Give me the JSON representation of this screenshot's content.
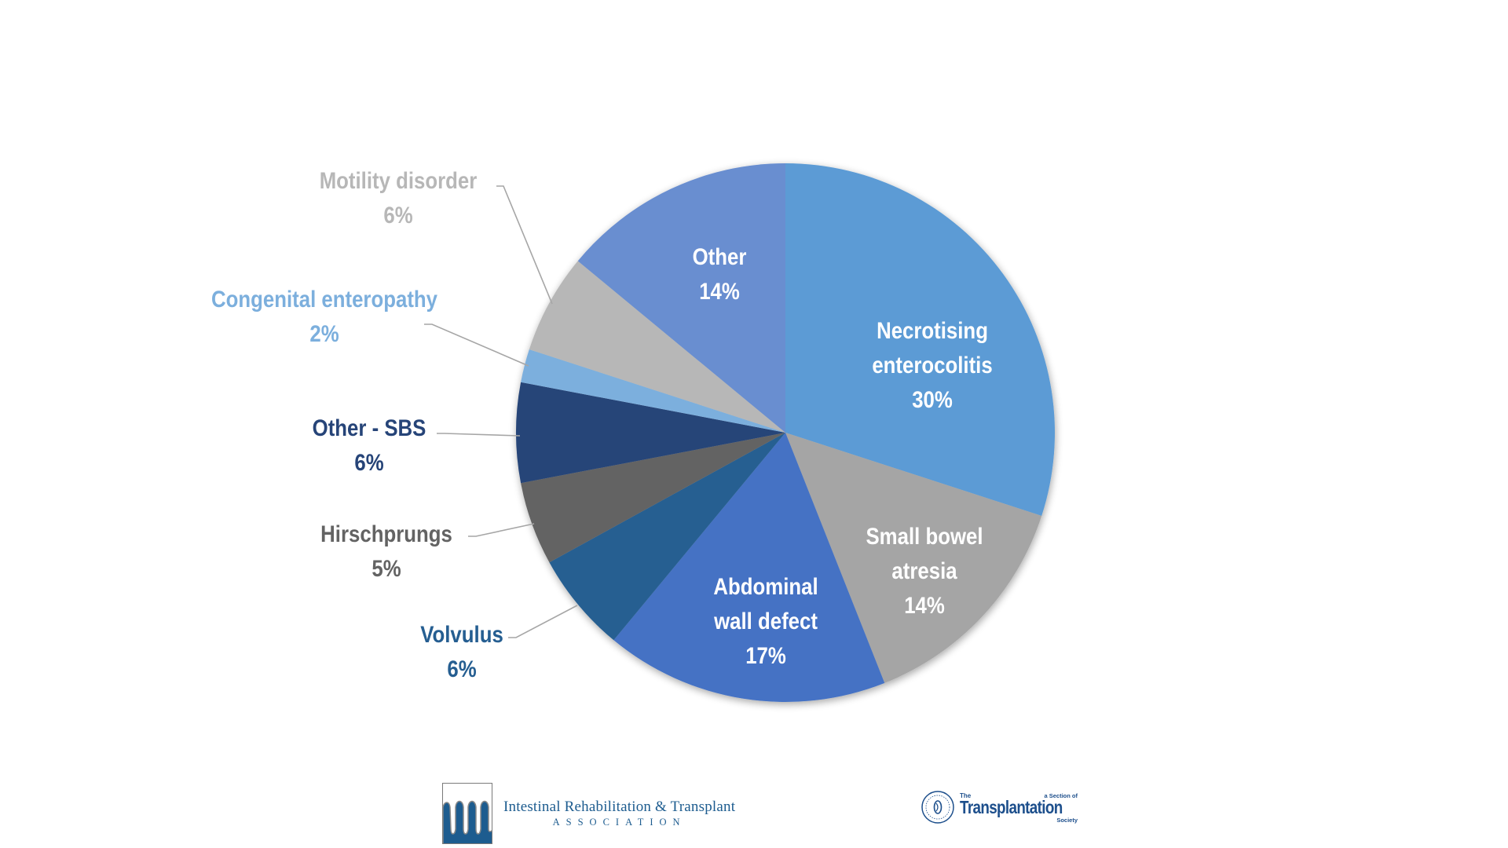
{
  "chart_data": {
    "type": "pie",
    "title": "",
    "start_angle": "12 o'clock",
    "direction": "clockwise",
    "slices": [
      {
        "label": "Necrotising enterocolitis",
        "label_lines": [
          "Necrotising",
          "enterocolitis"
        ],
        "value": 30,
        "value_label": "30%",
        "color": "#5B9BD5",
        "label_position": "inside",
        "label_color": "#FFFFFF"
      },
      {
        "label": "Small bowel atresia",
        "label_lines": [
          "Small bowel",
          "atresia"
        ],
        "value": 14,
        "value_label": "14%",
        "color": "#A5A5A5",
        "label_position": "inside",
        "label_color": "#FFFFFF"
      },
      {
        "label": "Abdominal wall defect",
        "label_lines": [
          "Abdominal",
          "wall defect"
        ],
        "value": 17,
        "value_label": "17%",
        "color": "#4472C4",
        "label_position": "inside",
        "label_color": "#FFFFFF"
      },
      {
        "label": "Volvulus",
        "label_lines": [
          "Volvulus"
        ],
        "value": 6,
        "value_label": "6%",
        "color": "#255E91",
        "label_position": "outside",
        "label_color": "#255E91"
      },
      {
        "label": "Hirschprungs",
        "label_lines": [
          "Hirschprungs"
        ],
        "value": 5,
        "value_label": "5%",
        "color": "#636363",
        "label_position": "outside",
        "label_color": "#636363"
      },
      {
        "label": "Other - SBS",
        "label_lines": [
          "Other - SBS"
        ],
        "value": 6,
        "value_label": "6%",
        "color": "#264478",
        "label_position": "outside",
        "label_color": "#264478"
      },
      {
        "label": "Congenital enteropathy",
        "label_lines": [
          "Congenital enteropathy"
        ],
        "value": 2,
        "value_label": "2%",
        "color": "#7CAFDD",
        "label_position": "outside",
        "label_color": "#7CAFDD"
      },
      {
        "label": "Motility disorder",
        "label_lines": [
          "Motility disorder"
        ],
        "value": 6,
        "value_label": "6%",
        "color": "#B7B7B7",
        "label_position": "outside",
        "label_color": "#B7B7B7"
      },
      {
        "label": "Other",
        "label_lines": [
          "Other"
        ],
        "value": 14,
        "value_label": "14%",
        "color": "#698ED0",
        "label_position": "inside",
        "label_color": "#FFFFFF"
      }
    ],
    "leader_line_color": "#A6A6A6",
    "legend": "none"
  },
  "footer": {
    "irta_logo": {
      "name_line": "Intestinal Rehabilitation & Transplant",
      "sub_line": "ASSOCIATION",
      "color": "#1D5C8F"
    },
    "tts_logo": {
      "the": "The",
      "name": "Transplantation",
      "society": "Society",
      "section": "a Section of",
      "color": "#1D4F8C"
    }
  }
}
